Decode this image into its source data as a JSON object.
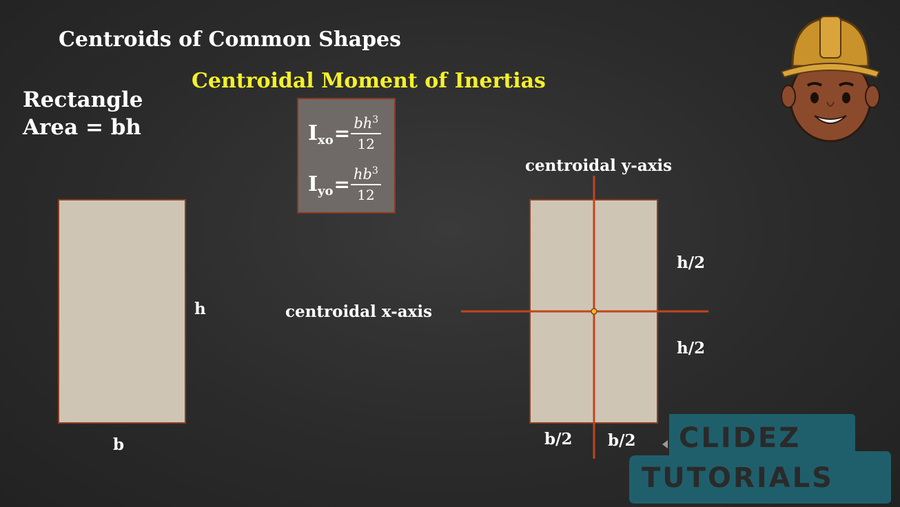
{
  "title": "Centroids of Common Shapes",
  "subtitle": "Centroidal Moment of Inertias",
  "shape": {
    "name": "Rectangle",
    "area": "Area = bh"
  },
  "formulas": {
    "ixo": {
      "symbol": "I",
      "sub": "xo",
      "numerator_base": "bh",
      "numerator_exp": "3",
      "denominator": "12"
    },
    "iyo": {
      "symbol": "I",
      "sub": "yo",
      "numerator_base": "hb",
      "numerator_exp": "3",
      "denominator": "12"
    }
  },
  "left_diagram": {
    "width_label": "b",
    "height_label": "h"
  },
  "right_diagram": {
    "y_axis_label": "centroidal y-axis",
    "x_axis_label": "centroidal x-axis",
    "half_height_top": "h/2",
    "half_height_bottom": "h/2",
    "half_width_left": "b/2",
    "half_width_right": "b/2"
  },
  "logo": {
    "line1": "CLIDEZ",
    "line2": "TUTORIALS"
  },
  "colors": {
    "accent_yellow": "#f5f02a",
    "axis": "#c0451f",
    "shape_fill": "#cfc5b4",
    "logo_teal": "#1f5f6b"
  }
}
